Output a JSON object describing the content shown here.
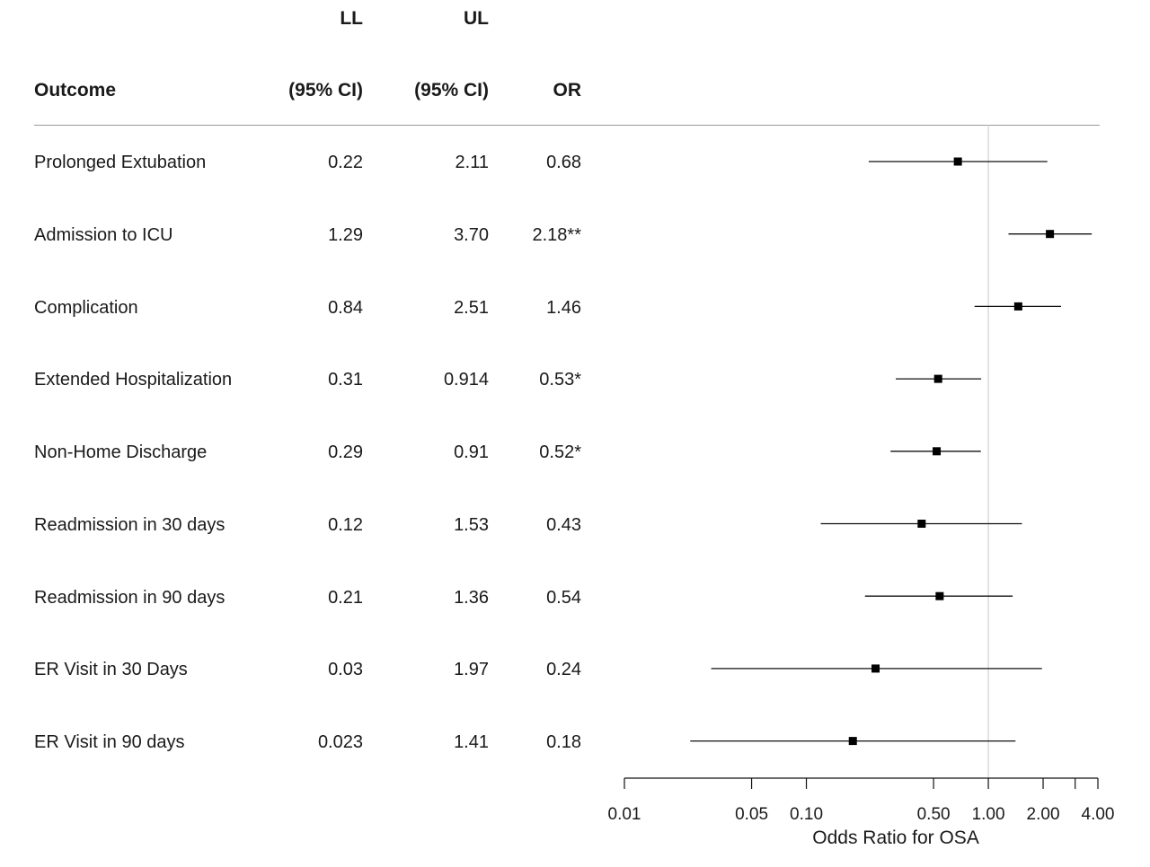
{
  "table": {
    "headers": {
      "outcome": "Outcome",
      "ll_top": "LL",
      "ll_bottom": "(95% CI)",
      "ul_top": "UL",
      "ul_bottom": "(95% CI)",
      "or": "OR"
    },
    "rows": [
      {
        "outcome": "Prolonged Extubation",
        "ll": "0.22",
        "ul": "2.11",
        "or": "0.68"
      },
      {
        "outcome": "Admission to ICU",
        "ll": "1.29",
        "ul": "3.70",
        "or": "2.18**"
      },
      {
        "outcome": "Complication",
        "ll": "0.84",
        "ul": "2.51",
        "or": "1.46"
      },
      {
        "outcome": "Extended Hospitalization",
        "ll": "0.31",
        "ul": "0.914",
        "or": "0.53*"
      },
      {
        "outcome": "Non-Home Discharge",
        "ll": "0.29",
        "ul": "0.91",
        "or": "0.52*"
      },
      {
        "outcome": "Readmission in 30 days",
        "ll": "0.12",
        "ul": "1.53",
        "or": "0.43"
      },
      {
        "outcome": "Readmission in 90 days",
        "ll": "0.21",
        "ul": "1.36",
        "or": "0.54"
      },
      {
        "outcome": "ER Visit in 30 Days",
        "ll": "0.03",
        "ul": "1.97",
        "or": "0.24"
      },
      {
        "outcome": "ER Visit in 90 days",
        "ll": "0.023",
        "ul": "1.41",
        "or": "0.18"
      }
    ]
  },
  "chart_data": {
    "type": "scatter",
    "subtype": "forest-plot",
    "xlabel": "Odds Ratio for OSA",
    "xscale": "log",
    "xlim": [
      0.01,
      4.0
    ],
    "reference_line": 1.0,
    "ticks": [
      0.01,
      0.05,
      0.1,
      0.5,
      1.0,
      2.0,
      3.0,
      4.0
    ],
    "tick_labels": [
      "0.01",
      "0.05",
      "0.10",
      "0.50",
      "1.00",
      "2.00",
      "",
      "4.00"
    ],
    "categories": [
      "Prolonged Extubation",
      "Admission to ICU",
      "Complication",
      "Extended Hospitalization",
      "Non-Home Discharge",
      "Readmission in 30 days",
      "Readmission in 90 days",
      "ER Visit in 30 Days",
      "ER Visit in 90 days"
    ],
    "or": [
      0.68,
      2.18,
      1.46,
      0.53,
      0.52,
      0.43,
      0.54,
      0.24,
      0.18
    ],
    "ll": [
      0.22,
      1.29,
      0.84,
      0.31,
      0.29,
      0.12,
      0.21,
      0.03,
      0.023
    ],
    "ul": [
      2.11,
      3.7,
      2.51,
      0.914,
      0.91,
      1.53,
      1.36,
      1.97,
      1.41
    ],
    "grid": false
  }
}
